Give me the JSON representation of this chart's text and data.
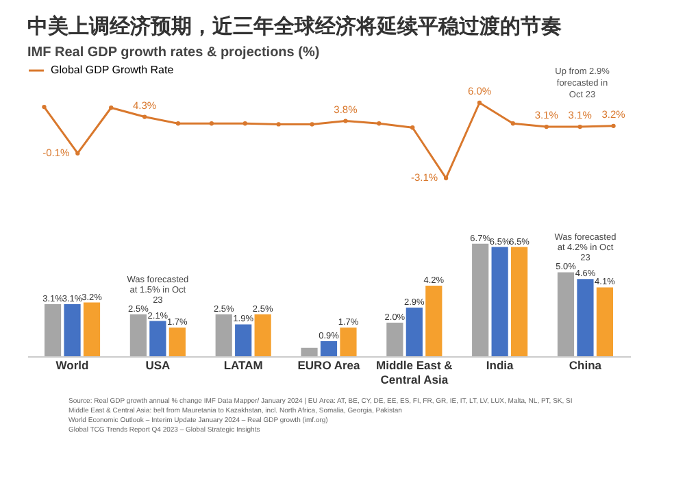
{
  "chart_data": [
    {
      "type": "line",
      "title": "中美上调经济预期，近三年全球经济将延续平稳过渡的节奏",
      "subtitle": "IMF Real GDP growth rates & projections (%)",
      "categories": [
        null,
        null,
        null,
        null,
        null,
        null,
        null,
        null,
        null,
        null,
        null,
        null,
        null,
        null,
        null,
        null,
        null,
        null
      ],
      "series": [
        {
          "name": "Global GDP Growth Rate",
          "color": "#d9782d",
          "values": [
            5.5,
            -0.1,
            5.4,
            4.3,
            3.5,
            3.5,
            3.5,
            3.4,
            3.4,
            3.8,
            3.5,
            3.0,
            -3.1,
            6.0,
            3.5,
            3.1,
            3.1,
            3.2
          ],
          "value_labels": [
            null,
            "-0.1%",
            null,
            "4.3%",
            null,
            null,
            null,
            null,
            null,
            "3.8%",
            null,
            null,
            "-3.1%",
            "6.0%",
            null,
            "3.1%",
            "3.1%",
            "3.2%"
          ]
        }
      ],
      "tick_labels": false,
      "legend": "top",
      "marker": "circle",
      "grid": false,
      "annotations": [
        "Up from 2.9% forecasted in Oct 23"
      ]
    },
    {
      "type": "bar",
      "categories": [
        "World",
        "USA",
        "LATAM",
        "EURO Area",
        "Middle East & Central Asia",
        "India",
        "China"
      ],
      "series": [
        {
          "color": "#a6a6a6",
          "values": [
            3.1,
            2.5,
            2.5,
            0.5,
            2.0,
            6.7,
            5.0
          ],
          "value_labels": [
            "3.1%",
            "2.5%",
            "2.5%",
            null,
            "2.0%",
            "6.7%",
            "5.0%"
          ]
        },
        {
          "color": "#4472c4",
          "values": [
            3.1,
            2.1,
            1.9,
            0.9,
            2.9,
            6.5,
            4.6
          ],
          "value_labels": [
            "3.1%",
            "2.1%",
            "1.9%",
            "0.9%",
            "2.9%",
            "6.5%",
            "4.6%"
          ]
        },
        {
          "color": "#f5a02e",
          "values": [
            3.2,
            1.7,
            2.5,
            1.7,
            4.2,
            6.5,
            4.1
          ],
          "value_labels": [
            "3.2%",
            "1.7%",
            "2.5%",
            "1.7%",
            "4.2%",
            "6.5%",
            "4.1%"
          ]
        }
      ],
      "tick_labels": "x",
      "legend": false,
      "grid": false,
      "annotations": [
        {
          "text": "Was forecasted at 1.5% in Oct 23",
          "x": "USA",
          "y": 2.1
        },
        {
          "text": "Was forecasted at 4.2% in Oct 23",
          "x": "China",
          "y": 4.6
        },
        "Source: Real GDP growth annual % change IMF Data Mapper/ January 2024 | EU Area: AT, BE, CY, DE, EE, ES, FI, FR, GR, IE, IT, LT, LV, LUX, Malta, NL, PT, SK, SI",
        "Middle East & Central Asia: belt from Mauretania to Kazakhstan, incl. North Africa, Somalia, Georgia, Pakistan",
        "World Economic Outlook – Interim Update January 2024 – Real GDP growth (imf.org)",
        "Global TCG Trends Report Q4 2023 – Global Strategic Insights"
      ]
    }
  ]
}
